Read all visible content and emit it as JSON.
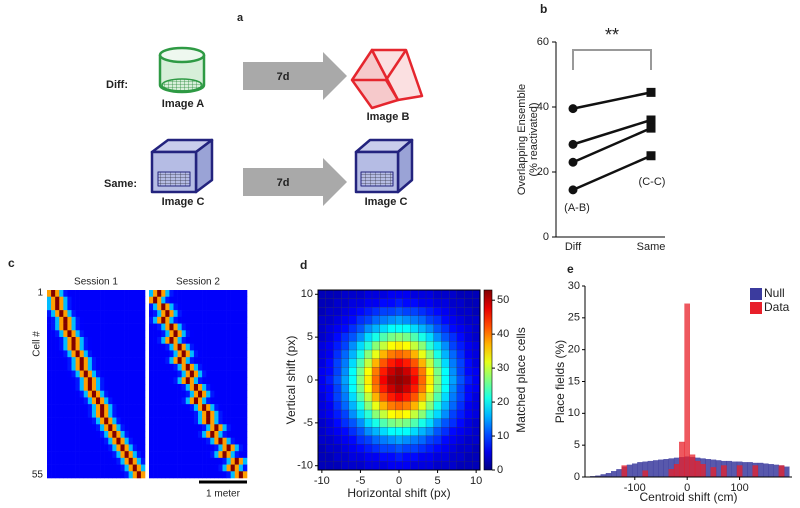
{
  "diagram": {
    "label": "a",
    "rows": [
      {
        "label": "Diff:",
        "from": "Image A",
        "arrow": "7d",
        "to": "Image B"
      },
      {
        "label": "Same:",
        "from": "Image C",
        "arrow": "7d",
        "to": "Image C"
      }
    ]
  },
  "chart_data": [
    {
      "type": "line",
      "panel": "b",
      "ylabel": [
        "Overlapping Ensemble",
        "(% reactivated)"
      ],
      "categories": [
        "Diff",
        "Same"
      ],
      "markers": [
        "circle",
        "square"
      ],
      "color": "#111111",
      "series": [
        {
          "values": [
            39.5,
            44.5
          ]
        },
        {
          "values": [
            28.5,
            36
          ]
        },
        {
          "values": [
            23,
            33.5
          ]
        },
        {
          "values": [
            14.5,
            25
          ]
        }
      ],
      "ylim": [
        0,
        60
      ],
      "yticks": [
        0,
        20,
        40,
        60
      ],
      "annotations": [
        "**",
        "(A-B)",
        "(C-C)"
      ]
    },
    {
      "type": "heatmap",
      "panel": "d",
      "xlabel": "Horizontal shift (px)",
      "ylabel": "Vertical shift (px)",
      "colorbar_label": "Matched place cells",
      "colormap": "jet",
      "xlim": [
        -10.5,
        10.5
      ],
      "xticks": [
        -10,
        -5,
        0,
        5,
        10
      ],
      "ylim": [
        -10.5,
        10.5
      ],
      "yticks": [
        -10,
        -5,
        0,
        5,
        10
      ],
      "zlim": [
        0,
        53
      ],
      "zticks": [
        0,
        10,
        20,
        30,
        40,
        50
      ],
      "z": [
        [
          3,
          3,
          3,
          4,
          4,
          4,
          5,
          5,
          5,
          6,
          6,
          6,
          5,
          5,
          5,
          4,
          4,
          4,
          3,
          3,
          3
        ],
        [
          3,
          3,
          4,
          4,
          5,
          5,
          6,
          6,
          7,
          7,
          8,
          7,
          7,
          6,
          6,
          5,
          5,
          4,
          4,
          3,
          3
        ],
        [
          3,
          4,
          4,
          5,
          6,
          7,
          8,
          9,
          10,
          10,
          11,
          10,
          10,
          9,
          8,
          7,
          6,
          5,
          4,
          4,
          3
        ],
        [
          4,
          4,
          5,
          6,
          7,
          9,
          10,
          12,
          13,
          14,
          15,
          14,
          13,
          12,
          10,
          9,
          7,
          6,
          5,
          4,
          4
        ],
        [
          4,
          5,
          6,
          7,
          9,
          11,
          14,
          16,
          18,
          20,
          20,
          20,
          18,
          16,
          14,
          11,
          9,
          7,
          6,
          5,
          4
        ],
        [
          4,
          5,
          7,
          9,
          11,
          14,
          18,
          21,
          24,
          26,
          27,
          26,
          24,
          21,
          18,
          14,
          11,
          9,
          7,
          5,
          4
        ],
        [
          5,
          6,
          8,
          10,
          14,
          18,
          22,
          27,
          30,
          33,
          34,
          33,
          30,
          27,
          22,
          18,
          14,
          10,
          8,
          6,
          5
        ],
        [
          5,
          6,
          9,
          12,
          16,
          21,
          27,
          32,
          37,
          40,
          41,
          40,
          37,
          32,
          27,
          21,
          16,
          12,
          9,
          6,
          5
        ],
        [
          5,
          7,
          10,
          13,
          18,
          24,
          30,
          37,
          42,
          45,
          47,
          45,
          42,
          37,
          30,
          24,
          18,
          13,
          10,
          7,
          5
        ],
        [
          6,
          7,
          10,
          14,
          20,
          26,
          33,
          40,
          45,
          49,
          51,
          49,
          45,
          40,
          33,
          26,
          20,
          14,
          10,
          7,
          6
        ],
        [
          6,
          8,
          11,
          15,
          20,
          27,
          34,
          41,
          47,
          51,
          52,
          51,
          47,
          41,
          34,
          27,
          20,
          15,
          11,
          8,
          6
        ],
        [
          6,
          7,
          10,
          14,
          20,
          26,
          33,
          40,
          45,
          49,
          51,
          49,
          45,
          40,
          33,
          26,
          20,
          14,
          10,
          7,
          6
        ],
        [
          5,
          7,
          10,
          13,
          18,
          24,
          30,
          37,
          42,
          45,
          47,
          45,
          42,
          37,
          30,
          24,
          18,
          13,
          10,
          7,
          5
        ],
        [
          5,
          6,
          9,
          12,
          16,
          21,
          27,
          32,
          37,
          40,
          41,
          40,
          37,
          32,
          27,
          21,
          16,
          12,
          9,
          6,
          5
        ],
        [
          5,
          6,
          8,
          10,
          14,
          18,
          22,
          27,
          30,
          33,
          34,
          33,
          30,
          27,
          22,
          18,
          14,
          10,
          8,
          6,
          5
        ],
        [
          4,
          5,
          7,
          9,
          11,
          14,
          18,
          21,
          24,
          26,
          27,
          26,
          24,
          21,
          18,
          14,
          11,
          9,
          7,
          5,
          4
        ],
        [
          4,
          5,
          6,
          7,
          9,
          11,
          14,
          16,
          18,
          20,
          20,
          20,
          18,
          16,
          14,
          11,
          9,
          7,
          6,
          5,
          4
        ],
        [
          4,
          4,
          5,
          6,
          7,
          9,
          10,
          12,
          13,
          14,
          15,
          14,
          13,
          12,
          10,
          9,
          7,
          6,
          5,
          4,
          4
        ],
        [
          3,
          4,
          4,
          5,
          6,
          7,
          8,
          9,
          10,
          10,
          11,
          10,
          10,
          9,
          8,
          7,
          6,
          5,
          4,
          4,
          3
        ],
        [
          3,
          3,
          4,
          4,
          5,
          5,
          6,
          6,
          7,
          7,
          8,
          7,
          7,
          6,
          6,
          5,
          5,
          4,
          4,
          3,
          3
        ],
        [
          3,
          3,
          3,
          4,
          4,
          4,
          5,
          5,
          5,
          6,
          6,
          6,
          5,
          5,
          5,
          4,
          4,
          4,
          3,
          3,
          3
        ]
      ]
    },
    {
      "type": "histogram",
      "panel": "e",
      "xlabel": "Centroid shift (cm)",
      "ylabel": "Place fields (%)",
      "bins": [
        -195,
        -185,
        -175,
        -165,
        -155,
        -145,
        -135,
        -125,
        -115,
        -105,
        -95,
        -85,
        -75,
        -65,
        -55,
        -45,
        -35,
        -25,
        -15,
        -5,
        5,
        15,
        25,
        35,
        45,
        55,
        65,
        75,
        85,
        95,
        105,
        115,
        125,
        135,
        145,
        155,
        165,
        175,
        185,
        195
      ],
      "series": [
        {
          "name": "Null",
          "color": "#3b3b9e",
          "values": [
            0,
            0.1,
            0.2,
            0.4,
            0.6,
            0.9,
            1.2,
            1.6,
            1.9,
            2.1,
            2.3,
            2.4,
            2.5,
            2.6,
            2.7,
            2.8,
            2.9,
            3.0,
            3.1,
            3.2,
            3.1,
            3.0,
            2.9,
            2.8,
            2.7,
            2.6,
            2.5,
            2.5,
            2.4,
            2.4,
            2.3,
            2.3,
            2.2,
            2.2,
            2.1,
            2.0,
            1.9,
            1.8,
            1.6
          ]
        },
        {
          "name": "Data",
          "color": "#e8202a",
          "values": [
            0,
            0,
            0,
            0,
            0,
            0,
            0,
            1.8,
            0,
            0,
            0,
            1.0,
            0,
            0,
            0,
            0,
            1.2,
            2.0,
            5.5,
            27.2,
            3.5,
            2.5,
            2.0,
            0,
            1.5,
            0,
            1.8,
            0,
            0,
            1.8,
            0,
            0,
            1.8,
            0,
            0,
            0,
            0,
            1.8,
            0
          ]
        }
      ],
      "xlim": [
        -195,
        200
      ],
      "xticks": [
        -100,
        0,
        100
      ],
      "ylim": [
        0,
        30
      ],
      "yticks": [
        0,
        5,
        10,
        15,
        20,
        25,
        30
      ],
      "legend": "upper right"
    },
    {
      "type": "raster",
      "panel": "c",
      "ylabel": "Cell #",
      "colormap": "jet",
      "xlim": [
        0,
        24
      ],
      "ylim": [
        1,
        55
      ],
      "yticks": [
        1,
        55
      ],
      "scalebar": "1 meter",
      "sessions": [
        {
          "name": "Session 1",
          "peaks": [
            1,
            2,
            2,
            3,
            4,
            4,
            5,
            6,
            6,
            7,
            8,
            8,
            9,
            10,
            10,
            11,
            12,
            13,
            13,
            14,
            15,
            16,
            17,
            18,
            19,
            20,
            21,
            22
          ]
        },
        {
          "name": "Session 2",
          "peaks": [
            2,
            1,
            3,
            4,
            3,
            5,
            6,
            5,
            7,
            8,
            7,
            9,
            10,
            9,
            11,
            12,
            11,
            13,
            14,
            14,
            16,
            15,
            17,
            19,
            18,
            21,
            20,
            22
          ]
        }
      ]
    }
  ]
}
